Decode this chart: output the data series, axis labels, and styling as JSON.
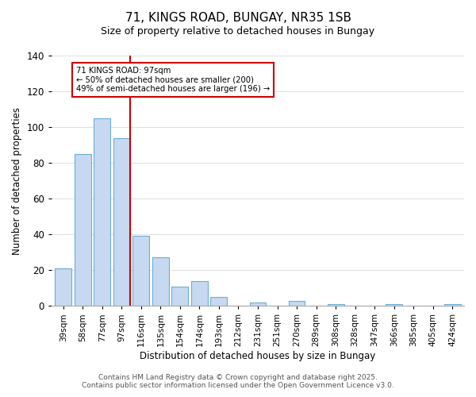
{
  "title": "71, KINGS ROAD, BUNGAY, NR35 1SB",
  "subtitle": "Size of property relative to detached houses in Bungay",
  "xlabel": "Distribution of detached houses by size in Bungay",
  "ylabel": "Number of detached properties",
  "bar_labels": [
    "39sqm",
    "58sqm",
    "77sqm",
    "97sqm",
    "116sqm",
    "135sqm",
    "154sqm",
    "174sqm",
    "193sqm",
    "212sqm",
    "231sqm",
    "251sqm",
    "270sqm",
    "289sqm",
    "308sqm",
    "328sqm",
    "347sqm",
    "366sqm",
    "385sqm",
    "405sqm",
    "424sqm"
  ],
  "bar_values": [
    21,
    85,
    105,
    94,
    39,
    27,
    11,
    14,
    5,
    0,
    2,
    0,
    3,
    0,
    1,
    0,
    0,
    1,
    0,
    0,
    1
  ],
  "bar_color": "#c6d9f0",
  "bar_edge_color": "#6baed6",
  "vline_index": 3,
  "vline_color": "#cc0000",
  "ylim": [
    0,
    140
  ],
  "yticks": [
    0,
    20,
    40,
    60,
    80,
    100,
    120,
    140
  ],
  "annotation_title": "71 KINGS ROAD: 97sqm",
  "annotation_line1": "← 50% of detached houses are smaller (200)",
  "annotation_line2": "49% of semi-detached houses are larger (196) →",
  "annotation_box_color": "#ffffff",
  "annotation_box_edge_color": "#cc0000",
  "footer_line1": "Contains HM Land Registry data © Crown copyright and database right 2025.",
  "footer_line2": "Contains public sector information licensed under the Open Government Licence v3.0.",
  "background_color": "#ffffff",
  "grid_color": "#e0e0e0"
}
